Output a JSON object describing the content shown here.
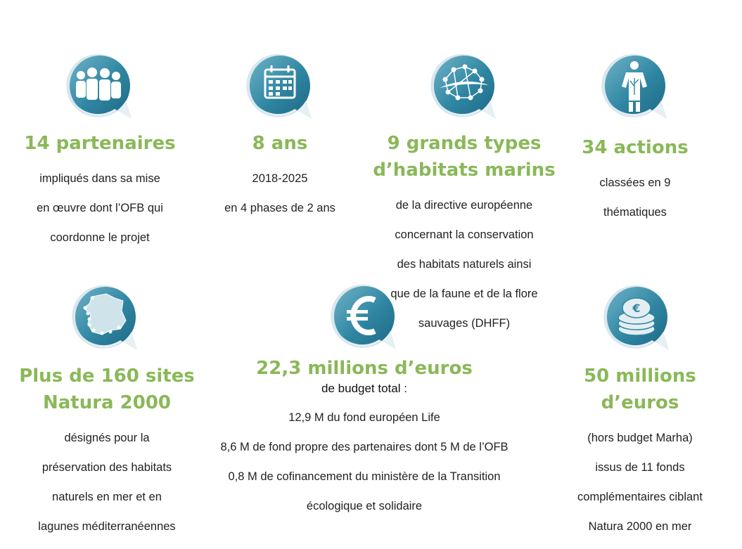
{
  "stats": [
    {
      "icon": "people-group-icon",
      "title_lines": [
        "14 partenaires"
      ],
      "desc_lines": [
        "impliqués dans sa mise",
        "en œuvre dont l’OFB qui",
        "coordonne le projet"
      ]
    },
    {
      "icon": "calendar-icon",
      "title_lines": [
        "8 ans"
      ],
      "desc_lines": [
        "2018-2025",
        "en 4 phases de 2 ans"
      ]
    },
    {
      "icon": "marine-habitats-icon",
      "title_lines": [
        "9 grands types",
        "d’habitats marins"
      ],
      "desc_lines": [
        "de la directive européenne",
        "concernant la conservation",
        "des habitats naturels ainsi",
        "que de la faune et de la flore",
        "sauvages (DHFF)"
      ]
    },
    {
      "icon": "person-plant-icon",
      "title_lines": [
        "34 actions"
      ],
      "desc_lines": [
        "classées en 9",
        "thématiques"
      ]
    },
    {
      "icon": "france-map-icon",
      "title_lines": [
        "Plus de 160 sites",
        "Natura 2000"
      ],
      "desc_lines": [
        "désignés pour la",
        "préservation des habitats",
        "naturels en mer et en",
        "lagunes méditerranéennes"
      ]
    },
    {
      "icon": "euro-icon",
      "title_lines": [
        "22,3 millions d’euros"
      ],
      "subtitle": "de budget total :",
      "desc_lines": [
        "12,9 M du fond européen Life",
        "8,6 M de fond propre des partenaires dont 5 M de l’OFB",
        "0,8 M de cofinancement du ministère de la Transition",
        "écologique et solidaire"
      ]
    },
    {
      "icon": "coins-stack-icon",
      "title_lines": [
        "50 millions",
        "d’euros"
      ],
      "desc_lines": [
        "(hors budget Marha)",
        "issus de 11 fonds",
        "complémentaires ciblant",
        "Natura 2000 en mer"
      ]
    }
  ],
  "colors": {
    "accent_green": "#8ab858",
    "icon_teal": "#3c8fa8",
    "icon_light": "#cfe2ea"
  }
}
